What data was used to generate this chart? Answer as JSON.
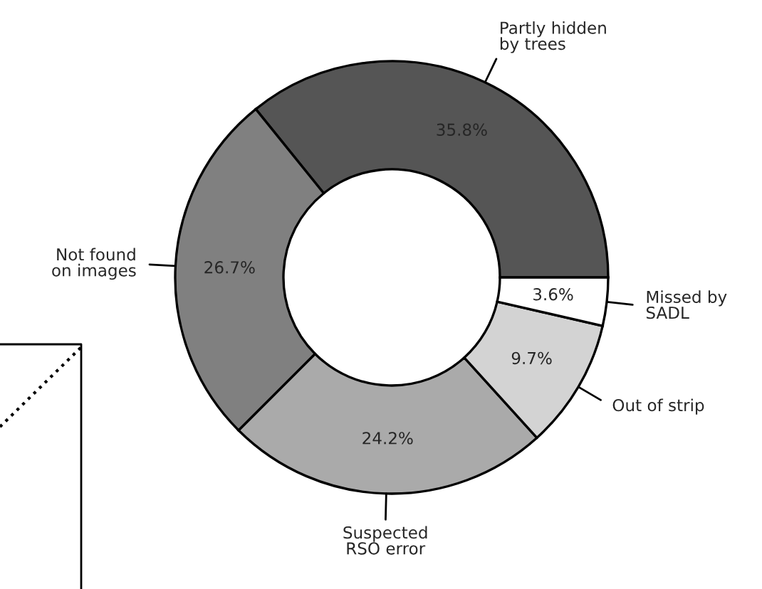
{
  "chart_data": {
    "type": "donut",
    "categories": [
      "Partly hidden\nby trees",
      "Not found\non images",
      "Suspected\nRSO error",
      "Out of strip",
      "Missed by\nSADL"
    ],
    "values": [
      35.8,
      26.7,
      24.2,
      9.7,
      3.6
    ],
    "colors": [
      "#555555",
      "#808080",
      "#aaaaaa",
      "#d3d3d3",
      "#ffffff"
    ],
    "value_labels": [
      "35.8%",
      "26.7%",
      "24.2%",
      "9.7%",
      "3.6%"
    ],
    "legend": false
  }
}
